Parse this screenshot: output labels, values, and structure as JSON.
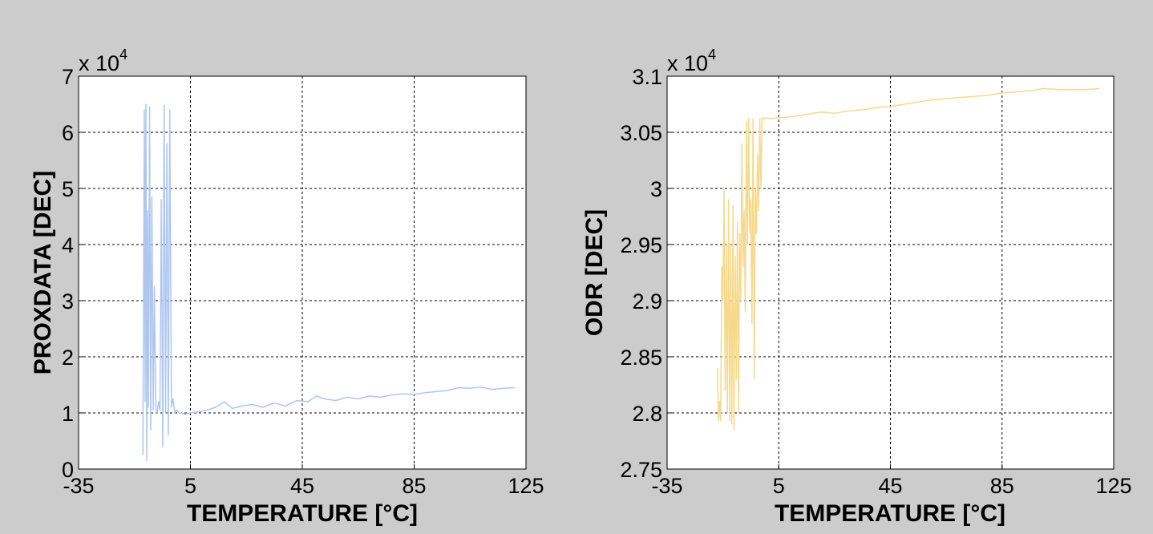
{
  "figure": {
    "background": "#cccccc"
  },
  "chart_data": [
    {
      "type": "line",
      "xlabel": "TEMPERATURE [°C]",
      "ylabel": "PROXDATA [DEC]",
      "y_exponent_prefix": "x 10",
      "y_exponent_power": "4",
      "xlim": [
        -35,
        125
      ],
      "ylim": [
        0,
        7
      ],
      "xticks": [
        -35,
        5,
        45,
        85,
        125
      ],
      "xtick_labels": [
        "-35",
        "5",
        "45",
        "85",
        "125"
      ],
      "yticks": [
        0,
        1,
        2,
        3,
        4,
        5,
        6,
        7
      ],
      "ytick_labels": [
        "0",
        "1",
        "2",
        "3",
        "4",
        "5",
        "6",
        "7"
      ],
      "grid": true,
      "series": [
        {
          "color": "#aec6f0",
          "x": [
            -12.0,
            -11.5,
            -11.2,
            -10.9,
            -10.6,
            -10.3,
            -10.0,
            -9.6,
            -9.2,
            -8.8,
            -8.3,
            -7.9,
            -7.4,
            -6.9,
            -6.4,
            -5.9,
            -5.4,
            -4.9,
            -4.4,
            -3.9,
            -3.4,
            -2.9,
            -2.4,
            -1.8,
            -1.2,
            -0.6,
            0.0,
            1.0,
            3.0,
            5.0,
            8.0,
            11.0,
            14.0,
            17.0,
            20.0,
            23.0,
            27.0,
            31.0,
            35.0,
            39.0,
            43.0,
            47.0,
            50.0,
            53.0,
            57.0,
            61.0,
            65.0,
            69.0,
            73.0,
            77.0,
            81.0,
            85.0,
            89.0,
            93.0,
            97.0,
            101.0,
            105.0,
            109.0,
            113.0,
            117.0,
            121.0
          ],
          "y": [
            0.25,
            6.4,
            1.2,
            6.5,
            0.15,
            4.6,
            1.1,
            6.45,
            0.7,
            4.85,
            1.05,
            3.25,
            1.1,
            1.0,
            1.2,
            1.05,
            4.8,
            0.4,
            6.48,
            1.0,
            5.8,
            0.6,
            6.4,
            1.1,
            1.25,
            1.0,
            1.05,
            1.0,
            0.98,
            1.0,
            1.02,
            1.05,
            1.1,
            1.2,
            1.08,
            1.12,
            1.15,
            1.1,
            1.18,
            1.12,
            1.22,
            1.2,
            1.3,
            1.25,
            1.22,
            1.28,
            1.25,
            1.3,
            1.28,
            1.32,
            1.34,
            1.33,
            1.36,
            1.38,
            1.4,
            1.45,
            1.44,
            1.46,
            1.42,
            1.44,
            1.45
          ]
        }
      ]
    },
    {
      "type": "line",
      "xlabel": "TEMPERATURE [°C]",
      "ylabel": "ODR [DEC]",
      "y_exponent_prefix": "x 10",
      "y_exponent_power": "4",
      "xlim": [
        -35,
        125
      ],
      "ylim": [
        2.75,
        3.1
      ],
      "xticks": [
        -35,
        5,
        45,
        85,
        125
      ],
      "xtick_labels": [
        "-35",
        "5",
        "45",
        "85",
        "125"
      ],
      "yticks": [
        2.75,
        2.8,
        2.85,
        2.9,
        2.95,
        3.0,
        3.05,
        3.1
      ],
      "ytick_labels": [
        "2.75",
        "2.8",
        "2.85",
        "2.9",
        "2.95",
        "3",
        "3.05",
        "3.1"
      ],
      "grid": true,
      "series": [
        {
          "color": "#f5d98c",
          "x": [
            -17.0,
            -16.6,
            -16.2,
            -15.8,
            -15.4,
            -15.0,
            -14.6,
            -14.2,
            -13.8,
            -13.4,
            -13.0,
            -12.6,
            -12.2,
            -11.8,
            -11.4,
            -11.0,
            -10.6,
            -10.2,
            -9.8,
            -9.4,
            -9.0,
            -8.6,
            -8.2,
            -7.8,
            -7.4,
            -7.0,
            -6.6,
            -6.2,
            -5.8,
            -5.4,
            -5.0,
            -4.6,
            -4.2,
            -3.8,
            -3.4,
            -3.0,
            -2.6,
            -2.2,
            -1.8,
            -1.4,
            -1.0,
            -0.6,
            -0.2,
            0.5,
            2.0,
            5.0,
            10.0,
            15.0,
            20.0,
            25.0,
            30.0,
            35.0,
            40.0,
            45.0,
            50.0,
            55.0,
            60.0,
            65.0,
            70.0,
            75.0,
            80.0,
            85.0,
            90.0,
            95.0,
            100.0,
            105.0,
            110.0,
            115.0,
            120.0
          ],
          "y": [
            2.84,
            2.793,
            2.81,
            2.793,
            2.93,
            2.9,
            3.0,
            2.82,
            2.95,
            2.8,
            2.99,
            2.793,
            2.95,
            2.79,
            2.985,
            2.785,
            2.94,
            2.83,
            2.97,
            2.8,
            2.96,
            2.9,
            3.04,
            2.93,
            2.98,
            2.89,
            3.06,
            2.95,
            3.062,
            2.96,
            2.99,
            2.88,
            3.062,
            2.83,
            3.0,
            2.96,
            3.03,
            2.98,
            3.062,
            3.0,
            3.062,
            3.063,
            3.062,
            3.063,
            3.062,
            3.063,
            3.064,
            3.066,
            3.068,
            3.067,
            3.069,
            3.07,
            3.072,
            3.073,
            3.075,
            3.077,
            3.079,
            3.08,
            3.081,
            3.082,
            3.083,
            3.085,
            3.086,
            3.087,
            3.089,
            3.088,
            3.088,
            3.088,
            3.089
          ]
        }
      ]
    }
  ]
}
